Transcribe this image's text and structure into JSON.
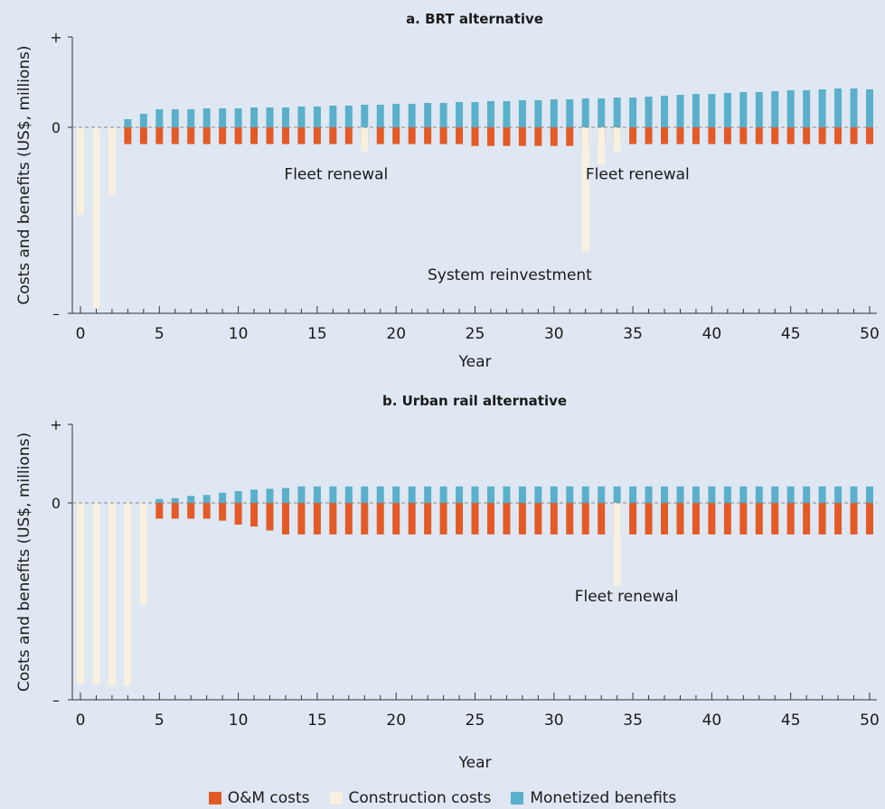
{
  "colors": {
    "om": "#e35a26",
    "construction": "#f8f1df",
    "benefits": "#5ab0cb",
    "background": "#dfe7f3"
  },
  "legend": {
    "om_label": "O&M costs",
    "construction_label": "Construction costs",
    "benefits_label": "Monetized benefits"
  },
  "chart_data": [
    {
      "type": "bar",
      "title": "a. BRT alternative",
      "xlabel": "Year",
      "ylabel": "Costs and benefits (US$, millions)",
      "y_tick_labels": [
        "+",
        "0",
        "–"
      ],
      "xlim": [
        0,
        50
      ],
      "ylim": [
        -1,
        1
      ],
      "x_ticks": [
        "0",
        "5",
        "10",
        "15",
        "20",
        "25",
        "30",
        "35",
        "40",
        "45",
        "50"
      ],
      "zero_line": "dashed",
      "years": [
        0,
        1,
        2,
        3,
        4,
        5,
        6,
        7,
        8,
        9,
        10,
        11,
        12,
        13,
        14,
        15,
        16,
        17,
        18,
        19,
        20,
        21,
        22,
        23,
        24,
        25,
        26,
        27,
        28,
        29,
        30,
        31,
        32,
        33,
        34,
        35,
        36,
        37,
        38,
        39,
        40,
        41,
        42,
        43,
        44,
        45,
        46,
        47,
        48,
        49,
        50
      ],
      "series": [
        {
          "name": "Monetized benefits",
          "key": "benefits",
          "values": [
            0,
            0,
            0,
            0.09,
            0.15,
            0.2,
            0.2,
            0.2,
            0.21,
            0.21,
            0.21,
            0.22,
            0.22,
            0.22,
            0.23,
            0.23,
            0.24,
            0.24,
            0.25,
            0.25,
            0.26,
            0.26,
            0.27,
            0.27,
            0.28,
            0.28,
            0.29,
            0.29,
            0.3,
            0.3,
            0.31,
            0.31,
            0.32,
            0.32,
            0.33,
            0.33,
            0.34,
            0.35,
            0.36,
            0.37,
            0.37,
            0.38,
            0.39,
            0.39,
            0.4,
            0.41,
            0.41,
            0.42,
            0.43,
            0.43,
            0.42
          ]
        },
        {
          "name": "O&M costs",
          "key": "om",
          "values": [
            0,
            0,
            0,
            -0.09,
            -0.09,
            -0.09,
            -0.09,
            -0.09,
            -0.09,
            -0.09,
            -0.09,
            -0.09,
            -0.09,
            -0.09,
            -0.09,
            -0.09,
            -0.09,
            -0.09,
            -0.09,
            -0.09,
            -0.09,
            -0.09,
            -0.09,
            -0.09,
            -0.09,
            -0.1,
            -0.1,
            -0.1,
            -0.1,
            -0.1,
            -0.1,
            -0.1,
            -0.1,
            -0.1,
            -0.09,
            -0.09,
            -0.09,
            -0.09,
            -0.09,
            -0.09,
            -0.09,
            -0.09,
            -0.09,
            -0.09,
            -0.09,
            -0.09,
            -0.09,
            -0.09,
            -0.09,
            -0.09,
            -0.09
          ]
        },
        {
          "name": "Construction costs",
          "key": "construction",
          "values": [
            -0.47,
            -0.97,
            -0.36,
            0,
            0,
            0,
            0,
            0,
            0,
            0,
            0,
            0,
            0,
            0,
            0,
            0,
            0,
            0,
            -0.13,
            0,
            0,
            0,
            0,
            0,
            0,
            0,
            0,
            0,
            0,
            0,
            0,
            0,
            -0.67,
            -0.2,
            -0.13,
            0,
            0,
            0,
            0,
            0,
            0,
            0,
            0,
            0,
            0,
            0,
            0,
            0,
            0,
            0,
            0
          ]
        }
      ],
      "annotations": [
        {
          "text": "Fleet renewal",
          "x": 16.2,
          "y": -0.28
        },
        {
          "text": "Fleet renewal",
          "x": 35.3,
          "y": -0.28
        },
        {
          "text": "System reinvestment",
          "x": 27.2,
          "y": -0.82
        }
      ]
    },
    {
      "type": "bar",
      "title": "b. Urban rail alternative",
      "xlabel": "Year",
      "ylabel": "Costs and benefits (US$, millions)",
      "y_tick_labels": [
        "+",
        "0",
        "–"
      ],
      "xlim": [
        0,
        50
      ],
      "ylim": [
        -1,
        1
      ],
      "x_ticks": [
        "0",
        "5",
        "10",
        "15",
        "20",
        "25",
        "30",
        "35",
        "40",
        "45",
        "50"
      ],
      "zero_line": "dashed",
      "years": [
        0,
        1,
        2,
        3,
        4,
        5,
        6,
        7,
        8,
        9,
        10,
        11,
        12,
        13,
        14,
        15,
        16,
        17,
        18,
        19,
        20,
        21,
        22,
        23,
        24,
        25,
        26,
        27,
        28,
        29,
        30,
        31,
        32,
        33,
        34,
        35,
        36,
        37,
        38,
        39,
        40,
        41,
        42,
        43,
        44,
        45,
        46,
        47,
        48,
        49,
        50
      ],
      "series": [
        {
          "name": "Monetized benefits",
          "key": "benefits",
          "values": [
            0,
            0,
            0,
            0,
            0,
            0.05,
            0.06,
            0.09,
            0.1,
            0.13,
            0.15,
            0.17,
            0.18,
            0.19,
            0.21,
            0.21,
            0.21,
            0.21,
            0.21,
            0.21,
            0.21,
            0.21,
            0.21,
            0.21,
            0.21,
            0.21,
            0.21,
            0.21,
            0.21,
            0.21,
            0.21,
            0.21,
            0.21,
            0.21,
            0.21,
            0.21,
            0.21,
            0.21,
            0.21,
            0.21,
            0.21,
            0.21,
            0.21,
            0.21,
            0.21,
            0.21,
            0.21,
            0.21,
            0.21,
            0.21,
            0.21
          ]
        },
        {
          "name": "O&M costs",
          "key": "om",
          "values": [
            0,
            0,
            0,
            0,
            0,
            -0.08,
            -0.08,
            -0.08,
            -0.08,
            -0.09,
            -0.11,
            -0.12,
            -0.14,
            -0.16,
            -0.16,
            -0.16,
            -0.16,
            -0.16,
            -0.16,
            -0.16,
            -0.16,
            -0.16,
            -0.16,
            -0.16,
            -0.16,
            -0.16,
            -0.16,
            -0.16,
            -0.16,
            -0.16,
            -0.16,
            -0.16,
            -0.16,
            -0.16,
            -0.16,
            -0.16,
            -0.16,
            -0.16,
            -0.16,
            -0.16,
            -0.16,
            -0.16,
            -0.16,
            -0.16,
            -0.16,
            -0.16,
            -0.16,
            -0.16,
            -0.16,
            -0.16,
            -0.16
          ]
        },
        {
          "name": "Construction costs",
          "key": "construction",
          "values": [
            -0.92,
            -0.92,
            -0.93,
            -0.93,
            -0.52,
            0,
            0,
            0,
            0,
            0,
            0,
            0,
            0,
            0,
            0,
            0,
            0,
            0,
            0,
            0,
            0,
            0,
            0,
            0,
            0,
            0,
            0,
            0,
            0,
            0,
            0,
            0,
            0,
            0,
            -0.42,
            0,
            0,
            0,
            0,
            0,
            0,
            0,
            0,
            0,
            0,
            0,
            0,
            0,
            0,
            0,
            0
          ]
        }
      ],
      "annotations": [
        {
          "text": "Fleet renewal",
          "x": 34.6,
          "y": -0.5
        }
      ]
    }
  ]
}
